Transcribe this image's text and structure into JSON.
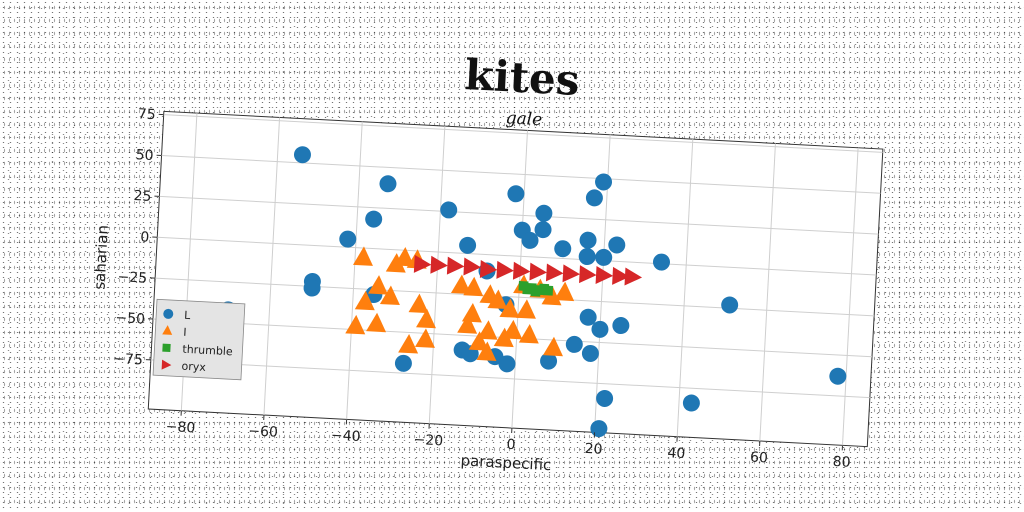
{
  "chart_data": {
    "type": "scatter",
    "figure_title": "kites",
    "title": "gale",
    "xlabel": "paraspecific",
    "ylabel": "saharian",
    "xlim": [
      -88,
      86
    ],
    "ylim": [
      -105,
      77
    ],
    "xticks": [
      -80,
      -60,
      -40,
      -20,
      0,
      20,
      40,
      60,
      80
    ],
    "yticks": [
      75,
      50,
      25,
      0,
      -25,
      -50,
      -75
    ],
    "grid": true,
    "legend_position": "lower-left",
    "series": [
      {
        "name": "L",
        "marker": "circle",
        "color": "#1f77b4",
        "points": [
          [
            -54,
            55
          ],
          [
            -33,
            40
          ],
          [
            -36,
            18
          ],
          [
            -42,
            5
          ],
          [
            -18,
            26
          ],
          [
            -13,
            5
          ],
          [
            -70,
            -42
          ],
          [
            -50,
            -22
          ],
          [
            -50,
            -26
          ],
          [
            -35,
            -28
          ],
          [
            -27,
            -69
          ],
          [
            -13,
            -59
          ],
          [
            -11,
            -61
          ],
          [
            -5,
            -62
          ],
          [
            -3,
            -30
          ],
          [
            -8,
            -10
          ],
          [
            -2,
            38
          ],
          [
            0,
            16
          ],
          [
            2,
            10
          ],
          [
            5,
            27
          ],
          [
            5,
            17
          ],
          [
            10,
            6
          ],
          [
            17,
            38
          ],
          [
            19,
            48
          ],
          [
            16,
            12
          ],
          [
            16,
            2
          ],
          [
            20,
            2
          ],
          [
            23,
            10
          ],
          [
            34,
            1
          ],
          [
            17,
            -35
          ],
          [
            20,
            -42
          ],
          [
            14,
            -52
          ],
          [
            18,
            -57
          ],
          [
            25,
            -39
          ],
          [
            -2,
            -66
          ],
          [
            8,
            -63
          ],
          [
            22,
            -84
          ],
          [
            21,
            -110
          ],
          [
            43,
            -84
          ],
          [
            51,
            -23
          ],
          [
            78,
            -63
          ]
        ]
      },
      {
        "name": "I",
        "marker": "triangle-up",
        "color": "#ff7f0e",
        "points": [
          [
            -38,
            -6
          ],
          [
            -30,
            -9
          ],
          [
            -28,
            -5
          ],
          [
            -25,
            -6
          ],
          [
            -34,
            -23
          ],
          [
            -31,
            -29
          ],
          [
            -37,
            -33
          ],
          [
            -34,
            -46
          ],
          [
            -39,
            -48
          ],
          [
            -26,
            -58
          ],
          [
            -24,
            -33
          ],
          [
            -22,
            -42
          ],
          [
            -22,
            -54
          ],
          [
            -14,
            -20
          ],
          [
            -11,
            -21
          ],
          [
            -7,
            -25
          ],
          [
            -11,
            -37
          ],
          [
            -12,
            -44
          ],
          [
            -7,
            -47
          ],
          [
            -9,
            -54
          ],
          [
            -7,
            -60
          ],
          [
            -5,
            -28
          ],
          [
            -2,
            -33
          ],
          [
            -1,
            -46
          ],
          [
            -3,
            -51
          ],
          [
            1,
            -18
          ],
          [
            2,
            -33
          ],
          [
            3,
            -48
          ],
          [
            5,
            -20
          ],
          [
            8,
            -24
          ],
          [
            11,
            -21
          ],
          [
            9,
            -55
          ]
        ]
      },
      {
        "name": "thrumble",
        "marker": "square",
        "color": "#2ca02c",
        "points": [
          [
            1,
            -18
          ],
          [
            2,
            -20
          ],
          [
            3,
            -19
          ],
          [
            4,
            -21
          ],
          [
            5,
            -20
          ],
          [
            6,
            -19
          ],
          [
            7,
            -20
          ]
        ]
      },
      {
        "name": "oryx",
        "marker": "triangle-right",
        "color": "#d62728",
        "points": [
          [
            -24,
            -8
          ],
          [
            -20,
            -8
          ],
          [
            -16,
            -8
          ],
          [
            -12,
            -8
          ],
          [
            -8,
            -9
          ],
          [
            -4,
            -9
          ],
          [
            0,
            -9
          ],
          [
            4,
            -9
          ],
          [
            8,
            -9
          ],
          [
            12,
            -9
          ],
          [
            16,
            -9
          ],
          [
            20,
            -9
          ],
          [
            24,
            -9
          ],
          [
            27,
            -9
          ]
        ]
      }
    ]
  }
}
